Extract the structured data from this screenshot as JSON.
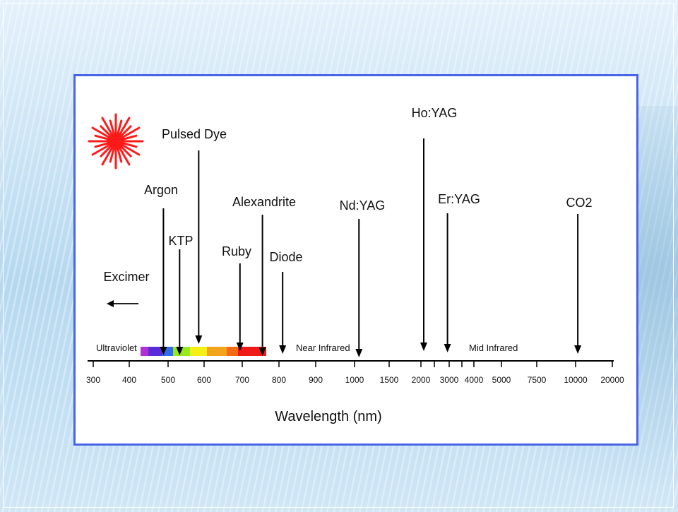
{
  "diagram": {
    "lasers": [
      {
        "name": "Excimer",
        "value": "<300",
        "offscale": true
      },
      {
        "name": "Argon",
        "value": 488
      },
      {
        "name": "KTP",
        "value": 532
      },
      {
        "name": "Pulsed Dye",
        "value": 585
      },
      {
        "name": "Ruby",
        "value": 694
      },
      {
        "name": "Alexandrite",
        "value": 755
      },
      {
        "name": "Diode",
        "value": 810
      },
      {
        "name": "Nd:YAG",
        "value": 1064
      },
      {
        "name": "Ho:YAG",
        "value": 2100
      },
      {
        "name": "Er:YAG",
        "value": 2940
      },
      {
        "name": "CO2",
        "value": 10600
      }
    ],
    "axis": {
      "ticks": [
        "300",
        "400",
        "500",
        "600",
        "700",
        "800",
        "900",
        "1000",
        "1500",
        "2000",
        "3000",
        "4000",
        "5000",
        "7500",
        "10000",
        "20000"
      ],
      "title": "Wavelength (nm)"
    },
    "regions": [
      "Ultraviolet",
      "Near Infrared",
      "Mid Infrared"
    ],
    "spectrum_colors": [
      "#b22fd8",
      "#5a2bd8",
      "#2f6cf0",
      "#98e81e",
      "#f4f016",
      "#f4a41c",
      "#f26a16",
      "#f01818"
    ],
    "arrow_color": "#000000",
    "frame_color": "#4a64e8",
    "starburst_color": "#ff1a1a",
    "icon": "laser-starburst-icon"
  }
}
